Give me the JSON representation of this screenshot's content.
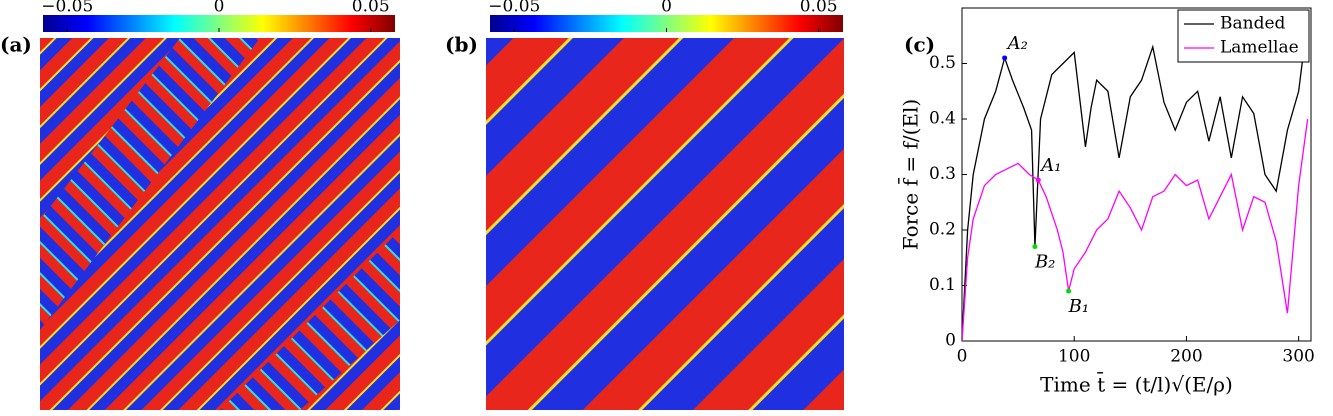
{
  "chart_data": [
    {
      "type": "heatmap",
      "label": "(a)",
      "colorbar_lim": [
        -0.058,
        0.058
      ],
      "colorbar_ticks": [
        {
          "value": -0.05,
          "label": "−0.05"
        },
        0,
        0.05
      ]
    },
    {
      "type": "heatmap",
      "label": "(b)",
      "colorbar_lim": [
        -0.058,
        0.058
      ],
      "colorbar_ticks": [
        {
          "value": -0.05,
          "label": "−0.05"
        },
        0,
        0.05
      ]
    },
    {
      "type": "line",
      "label": "(c)",
      "x_label": "Time t̄ = (t/l)√(E/ρ)",
      "y_label": "Force f̄ = f/(El)",
      "xlim": [
        0,
        311
      ],
      "ylim": [
        0,
        0.6
      ],
      "xticks": [
        0,
        100,
        200,
        300
      ],
      "yticks": [
        0,
        0.1,
        0.2,
        0.3,
        0.4,
        0.5
      ],
      "legend": "upper right",
      "series": [
        {
          "name": "Banded",
          "color": "#000000",
          "x": [
            0,
            5,
            10,
            20,
            30,
            38,
            45,
            55,
            62,
            65,
            70,
            80,
            90,
            100,
            110,
            115,
            120,
            130,
            140,
            150,
            160,
            170,
            180,
            190,
            200,
            210,
            220,
            230,
            240,
            250,
            260,
            270,
            280,
            290,
            300,
            308
          ],
          "values": [
            0,
            0.2,
            0.3,
            0.4,
            0.45,
            0.51,
            0.47,
            0.42,
            0.38,
            0.17,
            0.4,
            0.48,
            0.5,
            0.52,
            0.35,
            0.42,
            0.47,
            0.45,
            0.33,
            0.44,
            0.47,
            0.53,
            0.43,
            0.38,
            0.43,
            0.45,
            0.36,
            0.44,
            0.33,
            0.44,
            0.41,
            0.3,
            0.27,
            0.38,
            0.45,
            0.58
          ]
        },
        {
          "name": "Lamellae",
          "color": "#ff00ff",
          "x": [
            0,
            5,
            10,
            20,
            30,
            40,
            50,
            60,
            68,
            75,
            85,
            90,
            95,
            100,
            110,
            120,
            130,
            140,
            150,
            160,
            170,
            180,
            190,
            200,
            210,
            220,
            230,
            240,
            250,
            260,
            270,
            280,
            290,
            300,
            308
          ],
          "values": [
            0,
            0.15,
            0.22,
            0.28,
            0.3,
            0.31,
            0.32,
            0.3,
            0.29,
            0.26,
            0.2,
            0.16,
            0.09,
            0.13,
            0.16,
            0.2,
            0.22,
            0.27,
            0.24,
            0.2,
            0.26,
            0.27,
            0.3,
            0.28,
            0.29,
            0.22,
            0.26,
            0.3,
            0.2,
            0.26,
            0.25,
            0.18,
            0.05,
            0.28,
            0.4
          ]
        }
      ],
      "annotations": [
        {
          "text": "A₂",
          "x": 38,
          "y": 0.51,
          "color": "#0000ff"
        },
        {
          "text": "A₁",
          "x": 68,
          "y": 0.29,
          "color": "#ff00ff"
        },
        {
          "text": "B₂",
          "x": 65,
          "y": 0.17,
          "color": "#00dd00"
        },
        {
          "text": "B₁",
          "x": 95,
          "y": 0.09,
          "color": "#00dd00"
        }
      ]
    }
  ]
}
